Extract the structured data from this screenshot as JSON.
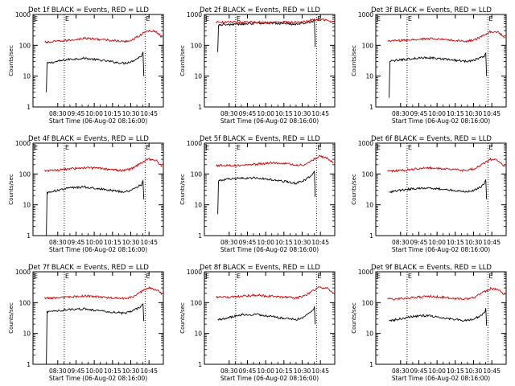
{
  "figure": {
    "colors": {
      "events": "#000000",
      "lld": "#d40000",
      "axes": "#000000",
      "background": "#ffffff"
    }
  },
  "chart_data": [
    {
      "type": "line",
      "title": "Det 1f  BLACK = Events, RED = LLD",
      "xlabel": "Start Time (06-Aug-02 08:16:00)",
      "ylabel": "Counts/sec",
      "x_ticks": [
        "08:30",
        "09:45",
        "10:00",
        "10:15",
        "10:30",
        "10:45"
      ],
      "y_ticks": [
        "1",
        "10",
        "100",
        "1000"
      ],
      "yscale": "log",
      "ylim": [
        1,
        1000
      ],
      "markers": [
        {
          "time": "09:36",
          "label": "E"
        },
        {
          "time": "10:35",
          "label": "E"
        }
      ],
      "series": [
        {
          "name": "Events",
          "x": [
            "08:32",
            "08:33",
            "08:40",
            "09:00",
            "09:20",
            "09:40",
            "10:00",
            "10:10",
            "10:20",
            "10:32",
            "10:34",
            "10:35"
          ],
          "y": [
            3,
            26,
            28,
            35,
            38,
            33,
            28,
            26,
            30,
            45,
            60,
            10
          ]
        },
        {
          "name": "LLD",
          "x": [
            "08:30",
            "08:40",
            "09:00",
            "09:20",
            "09:40",
            "10:00",
            "10:10",
            "10:20",
            "10:30",
            "10:40",
            "10:50",
            "10:58"
          ],
          "y": [
            125,
            130,
            145,
            170,
            155,
            140,
            130,
            150,
            210,
            300,
            280,
            180
          ]
        }
      ]
    },
    {
      "type": "line",
      "title": "Det 2f  BLACK = Events, RED = LLD",
      "xlabel": "Start Time (06-Aug-02 08:16:00)",
      "ylabel": "Counts/sec",
      "x_ticks": [
        "08:30",
        "09:45",
        "10:00",
        "10:15",
        "10:30",
        "10:45"
      ],
      "y_ticks": [
        "1",
        "10",
        "100",
        "1000"
      ],
      "yscale": "log",
      "ylim": [
        1,
        1000
      ],
      "markers": [
        {
          "time": "09:36",
          "label": "E"
        },
        {
          "time": "10:35",
          "label": "E"
        }
      ],
      "series": [
        {
          "name": "Events",
          "x": [
            "08:32",
            "08:33",
            "08:40",
            "09:00",
            "09:20",
            "09:40",
            "10:00",
            "10:10",
            "10:20",
            "10:32",
            "10:34",
            "10:35"
          ],
          "y": [
            60,
            460,
            470,
            480,
            520,
            530,
            500,
            480,
            520,
            600,
            700,
            90
          ]
        },
        {
          "name": "LLD",
          "x": [
            "08:30",
            "08:40",
            "09:00",
            "09:20",
            "09:40",
            "10:00",
            "10:10",
            "10:20",
            "10:30",
            "10:40",
            "10:50",
            "10:58"
          ],
          "y": [
            560,
            560,
            560,
            560,
            560,
            560,
            560,
            580,
            650,
            700,
            650,
            560
          ]
        }
      ]
    },
    {
      "type": "line",
      "title": "Det 3f  BLACK = Events, RED = LLD",
      "xlabel": "Start Time (06-Aug-02 08:16:00)",
      "ylabel": "Counts/sec",
      "x_ticks": [
        "08:30",
        "09:45",
        "10:00",
        "10:15",
        "10:30",
        "10:45"
      ],
      "y_ticks": [
        "1",
        "10",
        "100",
        "1000"
      ],
      "yscale": "log",
      "ylim": [
        1,
        1000
      ],
      "markers": [
        {
          "time": "09:36",
          "label": "E"
        },
        {
          "time": "10:35",
          "label": "E"
        }
      ],
      "series": [
        {
          "name": "Events",
          "x": [
            "08:32",
            "08:33",
            "08:40",
            "09:00",
            "09:20",
            "09:40",
            "10:00",
            "10:10",
            "10:20",
            "10:32",
            "10:34",
            "10:35"
          ],
          "y": [
            2,
            30,
            32,
            37,
            40,
            36,
            32,
            30,
            34,
            45,
            55,
            10
          ]
        },
        {
          "name": "LLD",
          "x": [
            "08:30",
            "08:40",
            "09:00",
            "09:20",
            "09:40",
            "10:00",
            "10:10",
            "10:20",
            "10:30",
            "10:40",
            "10:50",
            "10:58"
          ],
          "y": [
            140,
            140,
            150,
            165,
            155,
            140,
            135,
            150,
            200,
            280,
            260,
            180
          ]
        }
      ]
    },
    {
      "type": "line",
      "title": "Det 4f  BLACK = Events, RED = LLD",
      "xlabel": "Start Time (06-Aug-02 08:16:00)",
      "ylabel": "Counts/sec",
      "x_ticks": [
        "08:30",
        "09:45",
        "10:00",
        "10:15",
        "10:30",
        "10:45"
      ],
      "y_ticks": [
        "1",
        "10",
        "100",
        "1000"
      ],
      "yscale": "log",
      "ylim": [
        1,
        1000
      ],
      "markers": [
        {
          "time": "09:36",
          "label": "E"
        },
        {
          "time": "10:35",
          "label": "E"
        }
      ],
      "series": [
        {
          "name": "Events",
          "x": [
            "08:32",
            "08:33",
            "08:40",
            "09:00",
            "09:20",
            "09:40",
            "10:00",
            "10:10",
            "10:20",
            "10:32",
            "10:34",
            "10:35"
          ],
          "y": [
            1,
            25,
            27,
            35,
            38,
            33,
            28,
            26,
            30,
            45,
            60,
            15
          ]
        },
        {
          "name": "LLD",
          "x": [
            "08:30",
            "08:40",
            "09:00",
            "09:20",
            "09:40",
            "10:00",
            "10:10",
            "10:20",
            "10:30",
            "10:40",
            "10:50",
            "10:58"
          ],
          "y": [
            130,
            130,
            145,
            160,
            150,
            135,
            130,
            150,
            210,
            310,
            280,
            170
          ]
        }
      ]
    },
    {
      "type": "line",
      "title": "Det 5f  BLACK = Events, RED = LLD",
      "xlabel": "Start Time (06-Aug-02 08:16:00)",
      "ylabel": "Counts/sec",
      "x_ticks": [
        "08:30",
        "09:45",
        "10:00",
        "10:15",
        "10:30",
        "10:45"
      ],
      "y_ticks": [
        "1",
        "10",
        "100",
        "1000"
      ],
      "yscale": "log",
      "ylim": [
        1,
        1000
      ],
      "markers": [
        {
          "time": "09:36",
          "label": "E"
        },
        {
          "time": "10:35",
          "label": "E"
        }
      ],
      "series": [
        {
          "name": "Events",
          "x": [
            "08:32",
            "08:33",
            "08:40",
            "09:00",
            "09:20",
            "09:40",
            "10:00",
            "10:10",
            "10:20",
            "10:32",
            "10:34",
            "10:35"
          ],
          "y": [
            5,
            60,
            65,
            72,
            75,
            65,
            55,
            50,
            60,
            95,
            120,
            18
          ]
        },
        {
          "name": "LLD",
          "x": [
            "08:30",
            "08:40",
            "09:00",
            "09:20",
            "09:40",
            "10:00",
            "10:10",
            "10:20",
            "10:30",
            "10:40",
            "10:50",
            "10:58"
          ],
          "y": [
            190,
            190,
            195,
            205,
            230,
            215,
            195,
            195,
            260,
            380,
            330,
            220
          ]
        }
      ]
    },
    {
      "type": "line",
      "title": "Det 6f  BLACK = Events, RED = LLD",
      "xlabel": "Start Time (06-Aug-02 08:16:00)",
      "ylabel": "Counts/sec",
      "x_ticks": [
        "08:30",
        "09:45",
        "10:00",
        "10:15",
        "10:30",
        "10:45"
      ],
      "y_ticks": [
        "1",
        "10",
        "100",
        "1000"
      ],
      "yscale": "log",
      "ylim": [
        1,
        1000
      ],
      "markers": [
        {
          "time": "09:36",
          "label": "E"
        },
        {
          "time": "10:35",
          "label": "E"
        }
      ],
      "series": [
        {
          "name": "Events",
          "x": [
            "08:32",
            "08:33",
            "08:40",
            "09:00",
            "09:20",
            "09:40",
            "10:00",
            "10:10",
            "10:20",
            "10:32",
            "10:34",
            "10:35"
          ],
          "y": [
            25,
            26,
            28,
            33,
            36,
            32,
            28,
            26,
            30,
            45,
            65,
            15
          ]
        },
        {
          "name": "LLD",
          "x": [
            "08:30",
            "08:40",
            "09:00",
            "09:20",
            "09:40",
            "10:00",
            "10:10",
            "10:20",
            "10:30",
            "10:40",
            "10:50",
            "10:58"
          ],
          "y": [
            125,
            125,
            140,
            160,
            150,
            135,
            130,
            150,
            210,
            300,
            270,
            170
          ]
        }
      ]
    },
    {
      "type": "line",
      "title": "Det 7f  BLACK = Events, RED = LLD",
      "xlabel": "Start Time (06-Aug-02 08:16:00)",
      "ylabel": "Counts/sec",
      "x_ticks": [
        "08:30",
        "09:45",
        "10:00",
        "10:15",
        "10:30",
        "10:45"
      ],
      "y_ticks": [
        "1",
        "10",
        "100",
        "1000"
      ],
      "yscale": "log",
      "ylim": [
        1,
        1000
      ],
      "markers": [
        {
          "time": "09:36",
          "label": "E"
        },
        {
          "time": "10:35",
          "label": "E"
        }
      ],
      "series": [
        {
          "name": "Events",
          "x": [
            "08:32",
            "08:33",
            "08:40",
            "09:00",
            "09:20",
            "09:40",
            "10:00",
            "10:10",
            "10:20",
            "10:32",
            "10:34",
            "10:35"
          ],
          "y": [
            1,
            50,
            52,
            60,
            62,
            55,
            48,
            45,
            52,
            75,
            90,
            25
          ]
        },
        {
          "name": "LLD",
          "x": [
            "08:30",
            "08:40",
            "09:00",
            "09:20",
            "09:40",
            "10:00",
            "10:10",
            "10:20",
            "10:30",
            "10:40",
            "10:50",
            "10:58"
          ],
          "y": [
            140,
            140,
            150,
            165,
            155,
            140,
            135,
            150,
            210,
            300,
            270,
            190
          ]
        }
      ]
    },
    {
      "type": "line",
      "title": "Det 8f  BLACK = Events, RED = LLD",
      "xlabel": "Start Time (06-Aug-02 08:16:00)",
      "ylabel": "Counts/sec",
      "x_ticks": [
        "08:30",
        "09:45",
        "10:00",
        "10:15",
        "10:30",
        "10:45"
      ],
      "y_ticks": [
        "1",
        "10",
        "100",
        "1000"
      ],
      "yscale": "log",
      "ylim": [
        1,
        1000
      ],
      "markers": [
        {
          "time": "09:36",
          "label": "E"
        },
        {
          "time": "10:35",
          "label": "E"
        }
      ],
      "series": [
        {
          "name": "Events",
          "x": [
            "08:32",
            "08:33",
            "08:40",
            "09:00",
            "09:20",
            "09:40",
            "10:00",
            "10:10",
            "10:20",
            "10:32",
            "10:34",
            "10:35"
          ],
          "y": [
            28,
            28,
            30,
            40,
            42,
            35,
            30,
            28,
            32,
            55,
            75,
            20
          ]
        },
        {
          "name": "LLD",
          "x": [
            "08:30",
            "08:40",
            "09:00",
            "09:20",
            "09:40",
            "10:00",
            "10:10",
            "10:20",
            "10:30",
            "10:40",
            "10:50",
            "10:58"
          ],
          "y": [
            150,
            150,
            160,
            175,
            160,
            150,
            140,
            160,
            220,
            320,
            290,
            200
          ]
        }
      ]
    },
    {
      "type": "line",
      "title": "Det 9f  BLACK = Events, RED = LLD",
      "xlabel": "Start Time (06-Aug-02 08:16:00)",
      "ylabel": "Counts/sec",
      "x_ticks": [
        "08:30",
        "09:45",
        "10:00",
        "10:15",
        "10:30",
        "10:45"
      ],
      "y_ticks": [
        "1",
        "10",
        "100",
        "1000"
      ],
      "yscale": "log",
      "ylim": [
        1,
        1000
      ],
      "markers": [
        {
          "time": "09:36",
          "label": "E"
        },
        {
          "time": "10:35",
          "label": "E"
        }
      ],
      "series": [
        {
          "name": "Events",
          "x": [
            "08:32",
            "08:33",
            "08:40",
            "09:00",
            "09:20",
            "09:40",
            "10:00",
            "10:10",
            "10:20",
            "10:32",
            "10:34",
            "10:35"
          ],
          "y": [
            25,
            26,
            28,
            35,
            38,
            32,
            28,
            26,
            30,
            45,
            65,
            18
          ]
        },
        {
          "name": "LLD",
          "x": [
            "08:30",
            "08:40",
            "09:00",
            "09:20",
            "09:40",
            "10:00",
            "10:10",
            "10:20",
            "10:30",
            "10:40",
            "10:50",
            "10:58"
          ],
          "y": [
            130,
            130,
            145,
            160,
            150,
            135,
            130,
            150,
            210,
            290,
            260,
            180
          ]
        }
      ]
    }
  ]
}
